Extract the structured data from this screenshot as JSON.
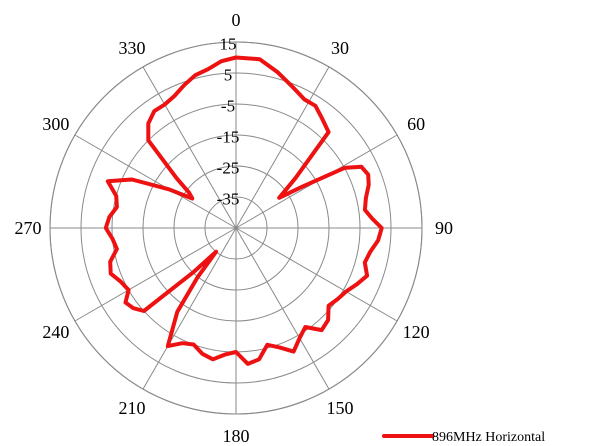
{
  "chart_data": {
    "type": "polar-line",
    "angle_direction": "clockwise",
    "zero_angle": "top",
    "angle_ticks": [
      0,
      30,
      60,
      90,
      120,
      150,
      180,
      210,
      240,
      270,
      300,
      330
    ],
    "angle_tick_labels": [
      "0",
      "30",
      "60",
      "90",
      "120",
      "150",
      "180",
      "210",
      "240",
      "270",
      "300",
      "330"
    ],
    "radial_range": [
      -45,
      15
    ],
    "radial_ticks": [
      15,
      5,
      -5,
      -15,
      -25,
      -35
    ],
    "radial_tick_labels": [
      "15",
      "5",
      "-5",
      "-15",
      "-25",
      "-35"
    ],
    "grid": true,
    "legend_position": "bottom-right",
    "series": [
      {
        "name": "896MHz Horizontal",
        "color": "#ee1111",
        "theta": [
          0,
          8,
          15,
          22,
          28,
          33,
          38,
          44,
          50,
          55,
          58,
          61,
          64,
          68,
          72,
          77,
          82,
          86,
          90,
          95,
          100,
          105,
          110,
          115,
          120,
          125,
          130,
          135,
          140,
          145,
          150,
          155,
          160,
          165,
          170,
          175,
          180,
          185,
          190,
          195,
          200,
          205,
          210,
          215,
          218,
          220,
          224,
          228,
          232,
          236,
          240,
          245,
          250,
          255,
          260,
          265,
          270,
          275,
          280,
          285,
          290,
          295,
          300,
          304,
          307,
          310,
          315,
          320,
          325,
          330,
          335,
          340,
          345,
          350,
          355,
          360
        ],
        "r": [
          10,
          10,
          7,
          4,
          2,
          2,
          0,
          -2,
          -20,
          -28,
          -20,
          -5,
          0,
          1,
          0,
          -2,
          -3,
          -1,
          2,
          1,
          -1,
          -2,
          0,
          -2,
          -4,
          -5,
          -6,
          -3,
          -2,
          -6,
          -4,
          -1,
          -4,
          -6,
          -2,
          -1,
          -5,
          -4,
          -2,
          -3,
          -5,
          -4,
          -1,
          -12,
          -25,
          -35,
          -25,
          -5,
          -3,
          -2,
          -5,
          -4,
          -2,
          -3,
          -6,
          -5,
          -3,
          -4,
          -6,
          -5,
          -1,
          -8,
          -20,
          -28,
          -26,
          -20,
          -5,
          -1,
          1,
          1,
          2,
          4,
          6,
          7,
          9,
          10
        ]
      }
    ]
  }
}
